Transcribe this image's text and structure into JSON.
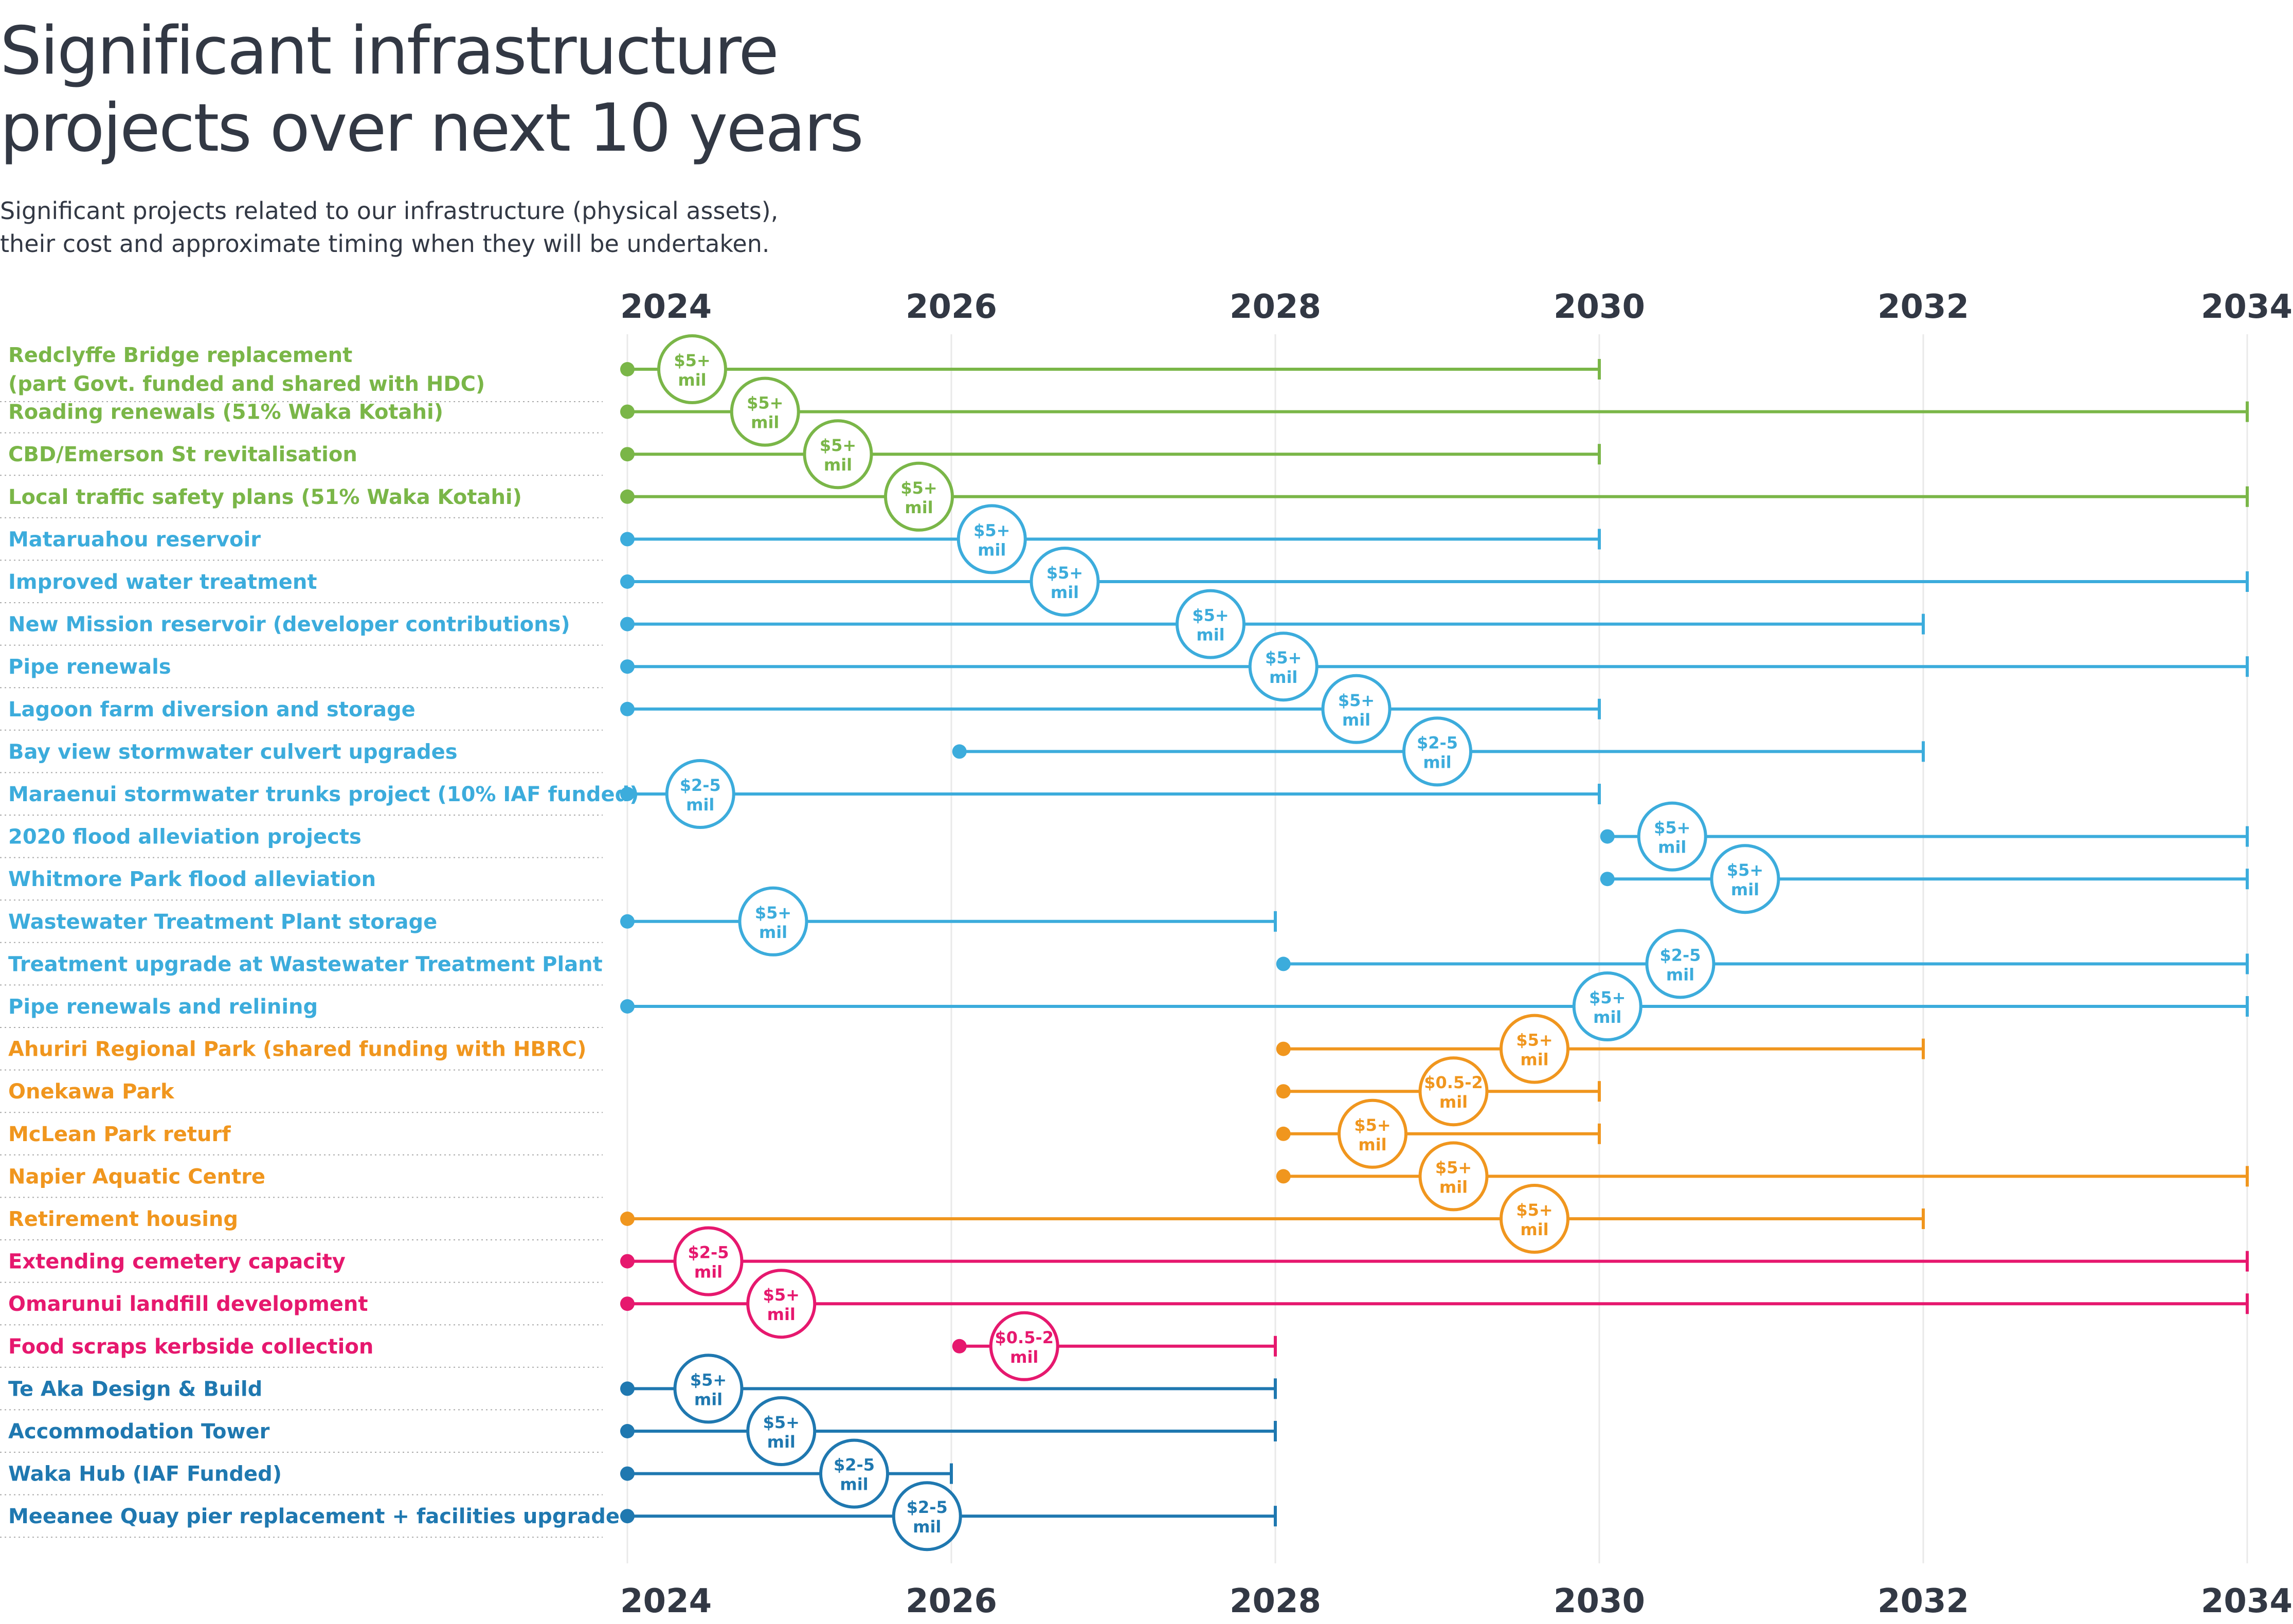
{
  "title_line1": "Significant infrastructure",
  "title_line2": "projects over next 10 years",
  "subtitle_line1": "Significant projects related to our infrastructure (physical assets),",
  "subtitle_line2": "their cost and approximate timing when they will be undertaken.",
  "colors": {
    "green": "#7ab648",
    "lightblue": "#3cacdc",
    "orange": "#f0961e",
    "pink": "#e6186e",
    "darkblue": "#1f78b0",
    "text": "#323844",
    "grid": "#e9e9e9",
    "divider": "#a9a9a9"
  },
  "chart_data": {
    "type": "gantt",
    "x_ticks": [
      "2024",
      "2026",
      "2028",
      "2030",
      "2032",
      "2034"
    ],
    "xlim": [
      2024,
      2034
    ],
    "projects": [
      {
        "label": [
          "Redclyffe Bridge replacement",
          "(part Govt. funded and shared with HDC)"
        ],
        "start": 2024,
        "end": 2030,
        "badge_x": 2024.4,
        "cost": [
          "$5+",
          "mil"
        ],
        "color": "green"
      },
      {
        "label": [
          "Roading renewals (51% Waka Kotahi)"
        ],
        "start": 2024,
        "end": 2034,
        "badge_x": 2024.85,
        "cost": [
          "$5+",
          "mil"
        ],
        "color": "green"
      },
      {
        "label": [
          "CBD/Emerson St revitalisation"
        ],
        "start": 2024,
        "end": 2030,
        "badge_x": 2025.3,
        "cost": [
          "$5+",
          "mil"
        ],
        "color": "green"
      },
      {
        "label": [
          "Local traffic safety plans (51% Waka Kotahi)"
        ],
        "start": 2024,
        "end": 2034,
        "badge_x": 2025.8,
        "cost": [
          "$5+",
          "mil"
        ],
        "color": "green"
      },
      {
        "label": [
          "Mataruahou reservoir"
        ],
        "start": 2024,
        "end": 2030,
        "badge_x": 2026.25,
        "cost": [
          "$5+",
          "mil"
        ],
        "color": "lightblue"
      },
      {
        "label": [
          "Improved water treatment"
        ],
        "start": 2024,
        "end": 2034,
        "badge_x": 2026.7,
        "cost": [
          "$5+",
          "mil"
        ],
        "color": "lightblue"
      },
      {
        "label": [
          "New Mission reservoir (developer contributions)"
        ],
        "start": 2024,
        "end": 2032,
        "badge_x": 2027.6,
        "cost": [
          "$5+",
          "mil"
        ],
        "color": "lightblue"
      },
      {
        "label": [
          "Pipe renewals"
        ],
        "start": 2024,
        "end": 2034,
        "badge_x": 2028.05,
        "cost": [
          "$5+",
          "mil"
        ],
        "color": "lightblue"
      },
      {
        "label": [
          "Lagoon farm diversion and storage"
        ],
        "start": 2024,
        "end": 2030,
        "badge_x": 2028.5,
        "cost": [
          "$5+",
          "mil"
        ],
        "color": "lightblue"
      },
      {
        "label": [
          "Bay view stormwater culvert upgrades"
        ],
        "start": 2026.05,
        "end": 2032,
        "badge_x": 2029.0,
        "cost": [
          "$2-5",
          "mil"
        ],
        "color": "lightblue"
      },
      {
        "label": [
          "Maraenui stormwater trunks project (10% IAF funded)"
        ],
        "start": 2024,
        "end": 2030,
        "badge_x": 2024.45,
        "cost": [
          "$2-5",
          "mil"
        ],
        "color": "lightblue"
      },
      {
        "label": [
          "2020 flood alleviation projects"
        ],
        "start": 2030.05,
        "end": 2034,
        "badge_x": 2030.45,
        "cost": [
          "$5+",
          "mil"
        ],
        "color": "lightblue"
      },
      {
        "label": [
          "Whitmore Park flood alleviation"
        ],
        "start": 2030.05,
        "end": 2034,
        "badge_x": 2030.9,
        "cost": [
          "$5+",
          "mil"
        ],
        "color": "lightblue"
      },
      {
        "label": [
          "Wastewater Treatment Plant storage"
        ],
        "start": 2024,
        "end": 2028,
        "badge_x": 2024.9,
        "cost": [
          "$5+",
          "mil"
        ],
        "color": "lightblue"
      },
      {
        "label": [
          "Treatment upgrade at Wastewater Treatment Plant"
        ],
        "start": 2028.05,
        "end": 2034,
        "badge_x": 2030.5,
        "cost": [
          "$2-5",
          "mil"
        ],
        "color": "lightblue"
      },
      {
        "label": [
          "Pipe renewals and relining"
        ],
        "start": 2024,
        "end": 2034,
        "badge_x": 2030.05,
        "cost": [
          "$5+",
          "mil"
        ],
        "color": "lightblue"
      },
      {
        "label": [
          "Ahuriri Regional Park (shared funding with HBRC)"
        ],
        "start": 2028.05,
        "end": 2032,
        "badge_x": 2029.6,
        "cost": [
          "$5+",
          "mil"
        ],
        "color": "orange"
      },
      {
        "label": [
          "Onekawa Park"
        ],
        "start": 2028.05,
        "end": 2030,
        "badge_x": 2029.1,
        "cost": [
          "$0.5-2",
          "mil"
        ],
        "color": "orange"
      },
      {
        "label": [
          "McLean Park returf"
        ],
        "start": 2028.05,
        "end": 2030,
        "badge_x": 2028.6,
        "cost": [
          "$5+",
          "mil"
        ],
        "color": "orange"
      },
      {
        "label": [
          "Napier Aquatic Centre"
        ],
        "start": 2028.05,
        "end": 2034,
        "badge_x": 2029.1,
        "cost": [
          "$5+",
          "mil"
        ],
        "color": "orange"
      },
      {
        "label": [
          "Retirement housing"
        ],
        "start": 2024,
        "end": 2032,
        "badge_x": 2029.6,
        "cost": [
          "$5+",
          "mil"
        ],
        "color": "orange"
      },
      {
        "label": [
          "Extending cemetery capacity"
        ],
        "start": 2024,
        "end": 2034,
        "badge_x": 2024.5,
        "cost": [
          "$2-5",
          "mil"
        ],
        "color": "pink"
      },
      {
        "label": [
          "Omarunui landfill development"
        ],
        "start": 2024,
        "end": 2034,
        "badge_x": 2024.95,
        "cost": [
          "$5+",
          "mil"
        ],
        "color": "pink"
      },
      {
        "label": [
          "Food scraps kerbside collection"
        ],
        "start": 2026.05,
        "end": 2028,
        "badge_x": 2026.45,
        "cost": [
          "$0.5-2",
          "mil"
        ],
        "color": "pink"
      },
      {
        "label": [
          "Te Aka Design & Build"
        ],
        "start": 2024,
        "end": 2028,
        "badge_x": 2024.5,
        "cost": [
          "$5+",
          "mil"
        ],
        "color": "darkblue"
      },
      {
        "label": [
          "Accommodation Tower"
        ],
        "start": 2024,
        "end": 2028,
        "badge_x": 2024.95,
        "cost": [
          "$5+",
          "mil"
        ],
        "color": "darkblue"
      },
      {
        "label": [
          "Waka Hub (IAF Funded)"
        ],
        "start": 2024,
        "end": 2026,
        "badge_x": 2025.4,
        "cost": [
          "$2-5",
          "mil"
        ],
        "color": "darkblue"
      },
      {
        "label": [
          "Meeanee Quay pier replacement + facilities upgrade"
        ],
        "start": 2024,
        "end": 2028,
        "badge_x": 2025.85,
        "cost": [
          "$2-5",
          "mil"
        ],
        "color": "darkblue"
      }
    ]
  }
}
